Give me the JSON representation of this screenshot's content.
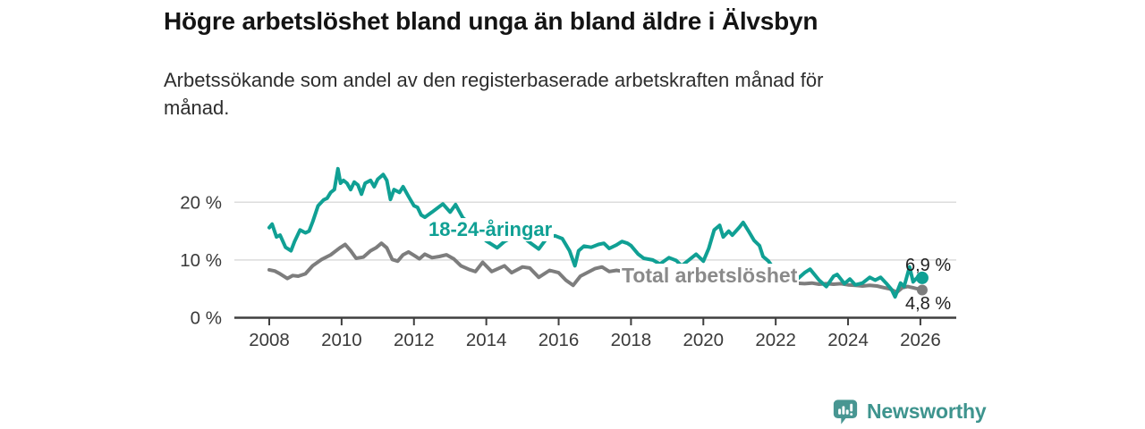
{
  "chart_data": {
    "type": "line",
    "title": "Högre arbetslöshet bland unga än bland äldre i Älvsbyn",
    "subtitle": "Arbetssökande som andel av den registerbaserade arbetskraften månad för månad.",
    "subtitle_lines": [
      "Arbetssökande som andel av den registerbaserade arbetskraften månad för",
      "månad."
    ],
    "x_axis": {
      "ticks": [
        2008,
        2010,
        2012,
        2014,
        2016,
        2018,
        2020,
        2022,
        2024,
        2026
      ],
      "range": [
        2007.0,
        2027.0
      ]
    },
    "y_axis": {
      "ticks": [
        0,
        10,
        20
      ],
      "tick_labels": [
        "0 %",
        "10 %",
        "20 %"
      ],
      "unit": "%",
      "range": [
        0,
        27
      ],
      "grid": "horizontal-light"
    },
    "legend_position": "inline-labels",
    "series": [
      {
        "name": "18-24-åringar",
        "color": "#10a094",
        "end_label": "6,9 %",
        "end_value": 6.9,
        "points": [
          [
            2008.0,
            15.6
          ],
          [
            2008.08,
            16.2
          ],
          [
            2008.2,
            14.0
          ],
          [
            2008.3,
            14.3
          ],
          [
            2008.45,
            12.2
          ],
          [
            2008.6,
            11.6
          ],
          [
            2008.7,
            13.2
          ],
          [
            2008.85,
            15.2
          ],
          [
            2009.0,
            14.7
          ],
          [
            2009.1,
            15.0
          ],
          [
            2009.2,
            16.6
          ],
          [
            2009.35,
            19.4
          ],
          [
            2009.5,
            20.4
          ],
          [
            2009.6,
            20.7
          ],
          [
            2009.7,
            21.7
          ],
          [
            2009.8,
            22.2
          ],
          [
            2009.9,
            25.8
          ],
          [
            2009.97,
            23.3
          ],
          [
            2010.05,
            23.8
          ],
          [
            2010.15,
            23.3
          ],
          [
            2010.25,
            22.2
          ],
          [
            2010.35,
            23.5
          ],
          [
            2010.45,
            23.0
          ],
          [
            2010.55,
            21.4
          ],
          [
            2010.65,
            23.3
          ],
          [
            2010.8,
            23.8
          ],
          [
            2010.9,
            22.7
          ],
          [
            2011.0,
            24.0
          ],
          [
            2011.15,
            24.8
          ],
          [
            2011.25,
            23.8
          ],
          [
            2011.35,
            20.5
          ],
          [
            2011.45,
            22.2
          ],
          [
            2011.6,
            21.7
          ],
          [
            2011.7,
            22.7
          ],
          [
            2011.85,
            21.0
          ],
          [
            2012.0,
            19.4
          ],
          [
            2012.1,
            19.1
          ],
          [
            2012.2,
            17.8
          ],
          [
            2012.3,
            17.4
          ],
          [
            2012.5,
            18.3
          ],
          [
            2012.8,
            19.7
          ],
          [
            2013.0,
            18.3
          ],
          [
            2013.15,
            19.6
          ],
          [
            2013.35,
            17.3
          ],
          [
            2013.6,
            16.0
          ],
          [
            2013.8,
            14.5
          ],
          [
            2014.0,
            13.3
          ],
          [
            2014.3,
            12.1
          ],
          [
            2014.5,
            13.2
          ],
          [
            2014.65,
            13.7
          ],
          [
            2014.85,
            14.2
          ],
          [
            2015.05,
            13.8
          ],
          [
            2015.25,
            12.8
          ],
          [
            2015.45,
            11.9
          ],
          [
            2015.7,
            14.0
          ],
          [
            2015.9,
            14.2
          ],
          [
            2016.1,
            13.7
          ],
          [
            2016.3,
            11.6
          ],
          [
            2016.45,
            9.0
          ],
          [
            2016.55,
            11.6
          ],
          [
            2016.7,
            12.4
          ],
          [
            2016.9,
            12.2
          ],
          [
            2017.1,
            12.7
          ],
          [
            2017.25,
            12.9
          ],
          [
            2017.4,
            12.0
          ],
          [
            2017.6,
            12.6
          ],
          [
            2017.75,
            13.2
          ],
          [
            2017.9,
            12.9
          ],
          [
            2018.0,
            12.5
          ],
          [
            2018.2,
            11.0
          ],
          [
            2018.35,
            10.3
          ],
          [
            2018.6,
            10.0
          ],
          [
            2018.8,
            9.3
          ],
          [
            2019.05,
            10.4
          ],
          [
            2019.25,
            9.9
          ],
          [
            2019.4,
            9.0
          ],
          [
            2019.6,
            10.0
          ],
          [
            2019.8,
            11.0
          ],
          [
            2020.0,
            9.8
          ],
          [
            2020.15,
            12.0
          ],
          [
            2020.3,
            15.2
          ],
          [
            2020.45,
            16.0
          ],
          [
            2020.55,
            14.0
          ],
          [
            2020.7,
            15.0
          ],
          [
            2020.8,
            14.3
          ],
          [
            2021.0,
            15.7
          ],
          [
            2021.1,
            16.5
          ],
          [
            2021.25,
            15.0
          ],
          [
            2021.4,
            13.4
          ],
          [
            2021.55,
            12.5
          ],
          [
            2021.65,
            10.6
          ],
          [
            2021.8,
            9.8
          ],
          [
            2022.0,
            8.0
          ],
          [
            2022.2,
            6.8
          ],
          [
            2022.4,
            6.3
          ],
          [
            2022.6,
            6.7
          ],
          [
            2022.8,
            7.8
          ],
          [
            2022.95,
            8.4
          ],
          [
            2023.2,
            6.5
          ],
          [
            2023.4,
            5.4
          ],
          [
            2023.6,
            7.2
          ],
          [
            2023.7,
            7.5
          ],
          [
            2023.9,
            5.9
          ],
          [
            2024.05,
            6.7
          ],
          [
            2024.2,
            5.7
          ],
          [
            2024.4,
            6.0
          ],
          [
            2024.6,
            7.0
          ],
          [
            2024.75,
            6.5
          ],
          [
            2024.9,
            7.0
          ],
          [
            2025.05,
            6.0
          ],
          [
            2025.2,
            4.9
          ],
          [
            2025.3,
            3.6
          ],
          [
            2025.45,
            6.0
          ],
          [
            2025.55,
            5.4
          ],
          [
            2025.7,
            8.8
          ],
          [
            2025.8,
            6.2
          ],
          [
            2025.95,
            7.2
          ],
          [
            2026.05,
            6.9
          ]
        ]
      },
      {
        "name": "Total arbetslöshet",
        "color": "#7d7d7d",
        "end_label": "4,8 %",
        "end_value": 4.8,
        "points": [
          [
            2008.0,
            8.3
          ],
          [
            2008.15,
            8.1
          ],
          [
            2008.3,
            7.6
          ],
          [
            2008.5,
            6.8
          ],
          [
            2008.65,
            7.3
          ],
          [
            2008.8,
            7.2
          ],
          [
            2009.0,
            7.6
          ],
          [
            2009.2,
            9.0
          ],
          [
            2009.45,
            10.1
          ],
          [
            2009.7,
            10.9
          ],
          [
            2009.95,
            12.1
          ],
          [
            2010.1,
            12.7
          ],
          [
            2010.25,
            11.6
          ],
          [
            2010.4,
            10.3
          ],
          [
            2010.6,
            10.5
          ],
          [
            2010.8,
            11.6
          ],
          [
            2010.95,
            12.1
          ],
          [
            2011.1,
            12.9
          ],
          [
            2011.25,
            12.1
          ],
          [
            2011.4,
            10.1
          ],
          [
            2011.55,
            9.8
          ],
          [
            2011.7,
            10.9
          ],
          [
            2011.85,
            11.4
          ],
          [
            2012.0,
            10.8
          ],
          [
            2012.15,
            10.2
          ],
          [
            2012.3,
            11.0
          ],
          [
            2012.5,
            10.4
          ],
          [
            2012.7,
            10.6
          ],
          [
            2012.9,
            10.9
          ],
          [
            2013.1,
            10.2
          ],
          [
            2013.3,
            9.0
          ],
          [
            2013.55,
            8.3
          ],
          [
            2013.7,
            8.0
          ],
          [
            2013.9,
            9.6
          ],
          [
            2014.15,
            8.0
          ],
          [
            2014.5,
            9.0
          ],
          [
            2014.7,
            7.8
          ],
          [
            2015.0,
            8.8
          ],
          [
            2015.2,
            8.6
          ],
          [
            2015.45,
            7.0
          ],
          [
            2015.75,
            8.2
          ],
          [
            2016.0,
            7.8
          ],
          [
            2016.2,
            6.5
          ],
          [
            2016.4,
            5.6
          ],
          [
            2016.6,
            7.2
          ],
          [
            2017.0,
            8.5
          ],
          [
            2017.2,
            8.8
          ],
          [
            2017.4,
            8.0
          ],
          [
            2017.6,
            8.2
          ],
          [
            2017.8,
            8.0
          ],
          [
            2018.0,
            7.7
          ],
          [
            2018.3,
            7.4
          ],
          [
            2018.6,
            7.2
          ],
          [
            2019.0,
            7.0
          ],
          [
            2019.4,
            6.8
          ],
          [
            2019.8,
            6.9
          ],
          [
            2020.1,
            7.2
          ],
          [
            2020.35,
            8.6
          ],
          [
            2020.6,
            9.0
          ],
          [
            2020.9,
            8.8
          ],
          [
            2021.2,
            8.3
          ],
          [
            2021.5,
            7.6
          ],
          [
            2021.8,
            6.9
          ],
          [
            2022.1,
            6.4
          ],
          [
            2022.3,
            6.2
          ],
          [
            2022.5,
            6.0
          ],
          [
            2022.8,
            5.9
          ],
          [
            2023.0,
            6.0
          ],
          [
            2023.2,
            5.8
          ],
          [
            2023.4,
            5.9
          ],
          [
            2023.6,
            5.8
          ],
          [
            2023.8,
            5.9
          ],
          [
            2024.0,
            5.7
          ],
          [
            2024.2,
            5.6
          ],
          [
            2024.4,
            5.5
          ],
          [
            2024.6,
            5.6
          ],
          [
            2024.8,
            5.5
          ],
          [
            2025.0,
            5.2
          ],
          [
            2025.15,
            5.0
          ],
          [
            2025.35,
            4.4
          ],
          [
            2025.5,
            5.2
          ],
          [
            2025.65,
            5.4
          ],
          [
            2025.8,
            5.2
          ],
          [
            2026.05,
            4.8
          ]
        ]
      }
    ]
  },
  "footer": {
    "brand": "Newsworthy",
    "brand_color": "#3e948e",
    "icon": "bar-chart-speech-bubble-icon"
  }
}
